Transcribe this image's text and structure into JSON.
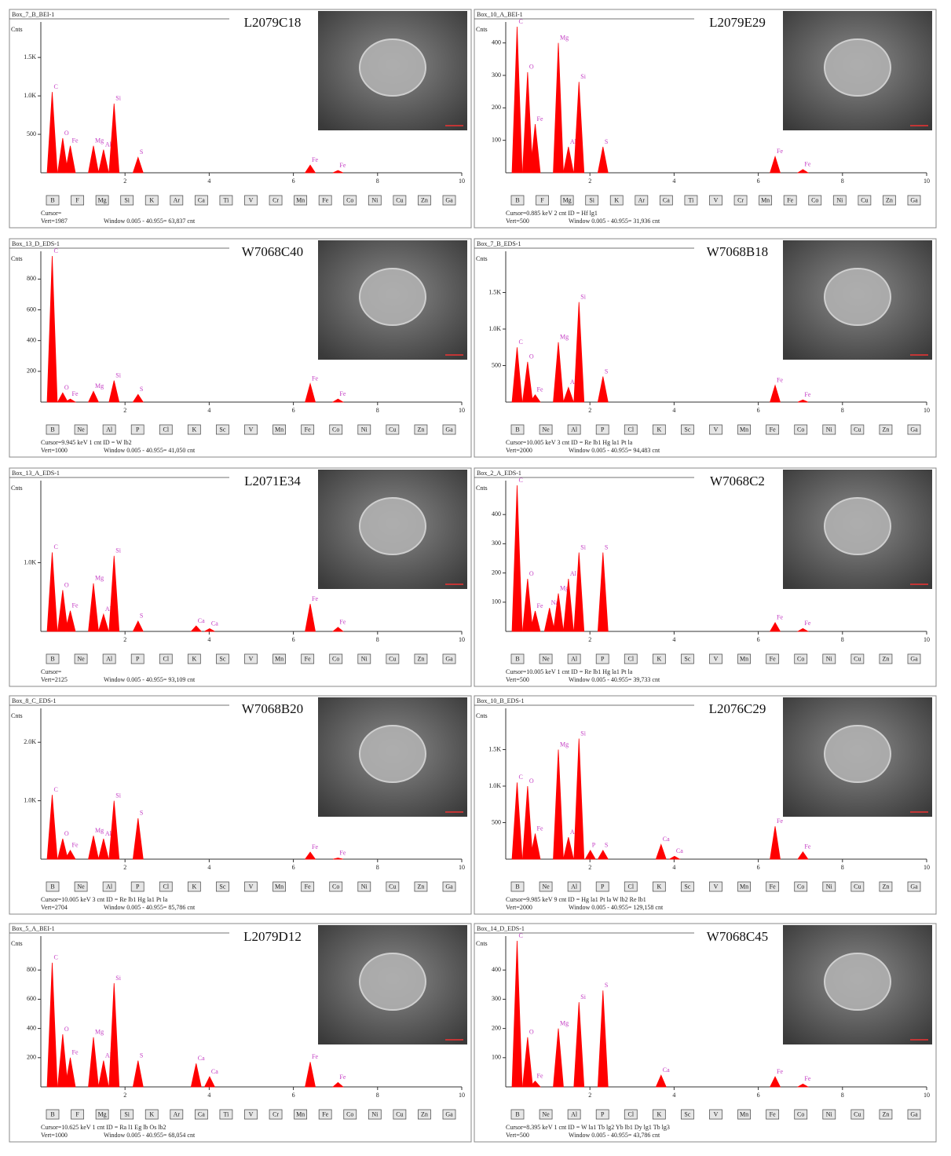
{
  "chart_data": [
    {
      "type": "spectrum",
      "header": "Box_7_B_BEI-1",
      "title": "L2079C18",
      "y_label": "Cnts",
      "color": "#ff0000",
      "xlim": [
        0,
        10
      ],
      "xticks": [
        2,
        4,
        6,
        8,
        10
      ],
      "ylim": [
        0,
        1900
      ],
      "yticks": [
        500,
        {
          "value": 1000,
          "label": "1.0K"
        },
        {
          "value": 1500,
          "label": "1.5K"
        }
      ],
      "x": [
        0.27,
        0.52,
        0.7,
        1.25,
        1.49,
        1.74,
        2.31,
        6.4,
        7.06
      ],
      "values": [
        1050,
        450,
        350,
        350,
        300,
        900,
        200,
        100,
        30
      ],
      "peak_labels": [
        "C",
        "O",
        "Fe",
        "Mg",
        "Al",
        "Si",
        "S",
        "Fe",
        "Fe"
      ],
      "buttons": [
        "B",
        "F",
        "Mg",
        "Si",
        "K",
        "Ar",
        "Ca",
        "Ti",
        "V",
        "Cr",
        "Mn",
        "Fe",
        "Co",
        "Ni",
        "Cu",
        "Zn",
        "Ga"
      ],
      "footer": [
        "Cursor=",
        "Vert=1987",
        "Window 0.005 - 40.955= 63,837 cnt"
      ]
    },
    {
      "type": "spectrum",
      "header": "Box_10_A_BEI-1",
      "title": "L2079E29",
      "y_label": "Cnts",
      "color": "#ff0000",
      "xlim": [
        0,
        10
      ],
      "xticks": [
        2,
        4,
        6,
        8,
        10
      ],
      "ylim": [
        0,
        450
      ],
      "yticks": [
        100,
        200,
        300,
        400
      ],
      "x": [
        0.27,
        0.52,
        0.7,
        1.25,
        1.49,
        1.74,
        2.31,
        6.4,
        7.06
      ],
      "values": [
        450,
        310,
        150,
        400,
        80,
        280,
        80,
        50,
        10
      ],
      "peak_labels": [
        "C",
        "O",
        "Fe",
        "Mg",
        "Al",
        "Si",
        "S",
        "Fe",
        "Fe"
      ],
      "buttons": [
        "B",
        "F",
        "Mg",
        "Si",
        "K",
        "Ar",
        "Ca",
        "Ti",
        "V",
        "Cr",
        "Mn",
        "Fe",
        "Co",
        "Ni",
        "Cu",
        "Zn",
        "Ga"
      ],
      "footer": [
        "Cursor=0.885 keV   2 cnt   ID = Hf lg1",
        "Vert=500",
        "Window 0.005 - 40.955= 31,936 cnt"
      ]
    },
    {
      "type": "spectrum",
      "header": "Box_13_D_EDS-1",
      "title": "W7068C40",
      "y_label": "Cnts",
      "color": "#ff0000",
      "xlim": [
        0,
        10
      ],
      "xticks": [
        2,
        4,
        6,
        8,
        10
      ],
      "ylim": [
        0,
        950
      ],
      "yticks": [
        200,
        400,
        600,
        800
      ],
      "x": [
        0.27,
        0.52,
        0.7,
        1.25,
        1.74,
        2.31,
        6.4,
        7.06
      ],
      "values": [
        950,
        60,
        20,
        70,
        140,
        50,
        120,
        20
      ],
      "peak_labels": [
        "C",
        "O",
        "Fe",
        "Mg",
        "Si",
        "S",
        "Fe",
        "Fe"
      ],
      "buttons": [
        "B",
        "Ne",
        "Al",
        "P",
        "Cl",
        "K",
        "Sc",
        "V",
        "Mn",
        "Fe",
        "Co",
        "Ni",
        "Cu",
        "Zn",
        "Ga"
      ],
      "footer": [
        "Cursor=9.945 keV   1 cnt   ID = W lb2",
        "Vert=1000",
        "Window 0.005 - 40.955= 41,050 cnt"
      ]
    },
    {
      "type": "spectrum",
      "header": "Box_7_B_EDS-1",
      "title": "W7068B18",
      "y_label": "Cnts",
      "color": "#ff0000",
      "xlim": [
        0,
        10
      ],
      "xticks": [
        2,
        4,
        6,
        8,
        10
      ],
      "ylim": [
        0,
        2000
      ],
      "yticks": [
        500,
        {
          "value": 1000,
          "label": "1.0K"
        },
        {
          "value": 1500,
          "label": "1.5K"
        }
      ],
      "x": [
        0.27,
        0.52,
        0.7,
        1.25,
        1.49,
        1.74,
        2.31,
        6.4,
        7.06
      ],
      "values": [
        750,
        550,
        100,
        820,
        200,
        1370,
        350,
        230,
        30
      ],
      "peak_labels": [
        "C",
        "O",
        "Fe",
        "Mg",
        "Al",
        "Si",
        "S",
        "Fe",
        "Fe"
      ],
      "buttons": [
        "B",
        "Ne",
        "Al",
        "P",
        "Cl",
        "K",
        "Sc",
        "V",
        "Mn",
        "Fe",
        "Co",
        "Ni",
        "Cu",
        "Zn",
        "Ga"
      ],
      "footer": [
        "Cursor=10.005 keV   3 cnt   ID = Re lb1 Hg la1 Pt la",
        "Vert=2000",
        "Window 0.005 - 40.955= 94,483 cnt"
      ]
    },
    {
      "type": "spectrum",
      "header": "Box_13_A_EDS-1",
      "title": "L2071E34",
      "y_label": "Cnts",
      "color": "#ff0000",
      "xlim": [
        0,
        10
      ],
      "xticks": [
        2,
        4,
        6,
        8,
        10
      ],
      "ylim": [
        0,
        2125
      ],
      "yticks": [
        {
          "value": 1000,
          "label": "1.0K"
        }
      ],
      "x": [
        0.27,
        0.52,
        0.7,
        1.25,
        1.49,
        1.74,
        2.31,
        3.69,
        4.01,
        6.4,
        7.06
      ],
      "values": [
        1150,
        600,
        300,
        700,
        250,
        1100,
        150,
        80,
        40,
        400,
        60
      ],
      "peak_labels": [
        "C",
        "O",
        "Fe",
        "Mg",
        "Al",
        "Si",
        "S",
        "Ca",
        "Ca",
        "Fe",
        "Fe"
      ],
      "buttons": [
        "B",
        "Ne",
        "Al",
        "P",
        "Cl",
        "K",
        "Sc",
        "V",
        "Mn",
        "Fe",
        "Co",
        "Ni",
        "Cu",
        "Zn",
        "Ga"
      ],
      "footer": [
        "Cursor=",
        "Vert=2125",
        "Window 0.005 - 40.955= 93,109 cnt"
      ]
    },
    {
      "type": "spectrum",
      "header": "Box_2_A_EDS-1",
      "title": "W7068C2",
      "y_label": "Cnts",
      "color": "#ff0000",
      "xlim": [
        0,
        10
      ],
      "xticks": [
        2,
        4,
        6,
        8,
        10
      ],
      "ylim": [
        0,
        500
      ],
      "yticks": [
        100,
        200,
        300,
        400
      ],
      "x": [
        0.27,
        0.52,
        0.7,
        1.04,
        1.25,
        1.49,
        1.74,
        2.31,
        6.4,
        7.06
      ],
      "values": [
        500,
        180,
        70,
        80,
        130,
        180,
        270,
        270,
        30,
        10
      ],
      "peak_labels": [
        "C",
        "O",
        "Fe",
        "Na",
        "Mg",
        "Al",
        "Si",
        "S",
        "Fe",
        "Fe"
      ],
      "buttons": [
        "B",
        "Ne",
        "Al",
        "P",
        "Cl",
        "K",
        "Sc",
        "V",
        "Mn",
        "Fe",
        "Co",
        "Ni",
        "Cu",
        "Zn",
        "Ga"
      ],
      "footer": [
        "Cursor=10.005 keV   1 cnt   ID = Re lb1 Hg la1 Pt la",
        "Vert=500",
        "Window 0.005 - 40.955= 39,733 cnt"
      ]
    },
    {
      "type": "spectrum",
      "header": "Box_8_C_EDS-1",
      "title": "W7068B20",
      "y_label": "Cnts",
      "color": "#ff0000",
      "xlim": [
        0,
        10
      ],
      "xticks": [
        2,
        4,
        6,
        8,
        10
      ],
      "ylim": [
        0,
        2500
      ],
      "yticks": [
        {
          "value": 1000,
          "label": "1.0K"
        },
        {
          "value": 2000,
          "label": "2.0K"
        }
      ],
      "x": [
        0.27,
        0.52,
        0.7,
        1.25,
        1.49,
        1.74,
        2.31,
        6.4,
        7.06
      ],
      "values": [
        1100,
        350,
        150,
        400,
        350,
        1000,
        700,
        120,
        20
      ],
      "peak_labels": [
        "C",
        "O",
        "Fe",
        "Mg",
        "Al",
        "Si",
        "S",
        "Fe",
        "Fe"
      ],
      "buttons": [
        "B",
        "Ne",
        "Al",
        "P",
        "Cl",
        "K",
        "Sc",
        "V",
        "Mn",
        "Fe",
        "Co",
        "Ni",
        "Cu",
        "Zn",
        "Ga"
      ],
      "footer": [
        "Cursor=10.005 keV   3 cnt   ID = Re lb1 Hg la1 Pt la",
        "Vert=2704",
        "Window 0.005 - 40.955= 85,786 cnt"
      ]
    },
    {
      "type": "spectrum",
      "header": "Box_10_B_EDS-1",
      "title": "L2076C29",
      "y_label": "Cnts",
      "color": "#ff0000",
      "xlim": [
        0,
        10
      ],
      "xticks": [
        2,
        4,
        6,
        8,
        10
      ],
      "ylim": [
        0,
        2000
      ],
      "yticks": [
        500,
        {
          "value": 1000,
          "label": "1.0K"
        },
        {
          "value": 1500,
          "label": "1.5K"
        }
      ],
      "x": [
        0.27,
        0.52,
        0.7,
        1.25,
        1.49,
        1.74,
        2.01,
        2.31,
        3.69,
        4.01,
        6.4,
        7.06
      ],
      "values": [
        1050,
        1000,
        350,
        1500,
        300,
        1650,
        120,
        120,
        200,
        40,
        450,
        100
      ],
      "peak_labels": [
        "C",
        "O",
        "Fe",
        "Mg",
        "Al",
        "Si",
        "P",
        "S",
        "Ca",
        "Ca",
        "Fe",
        "Fe"
      ],
      "buttons": [
        "B",
        "Ne",
        "Al",
        "P",
        "Cl",
        "K",
        "Sc",
        "V",
        "Mn",
        "Fe",
        "Co",
        "Ni",
        "Cu",
        "Zn",
        "Ga"
      ],
      "footer": [
        "Cursor=9.985 keV   9 cnt   ID = Hg la1 Pt la  W lb2 Re lb1",
        "Vert=2000",
        "Window 0.005 - 40.955= 129,158 cnt"
      ]
    },
    {
      "type": "spectrum",
      "header": "Box_5_A_BEI-1",
      "title": "L2079D12",
      "y_label": "Cnts",
      "color": "#ff0000",
      "xlim": [
        0,
        10
      ],
      "xticks": [
        2,
        4,
        6,
        8,
        10
      ],
      "ylim": [
        0,
        1000
      ],
      "yticks": [
        200,
        400,
        600,
        800
      ],
      "x": [
        0.27,
        0.52,
        0.7,
        1.25,
        1.49,
        1.74,
        2.31,
        3.69,
        4.01,
        6.4,
        7.06
      ],
      "values": [
        850,
        360,
        200,
        340,
        180,
        710,
        180,
        160,
        70,
        170,
        30
      ],
      "peak_labels": [
        "C",
        "O",
        "Fe",
        "Mg",
        "Al",
        "Si",
        "S",
        "Ca",
        "Ca",
        "Fe",
        "Fe"
      ],
      "buttons": [
        "B",
        "F",
        "Mg",
        "Si",
        "K",
        "Ar",
        "Ca",
        "Ti",
        "V",
        "Cr",
        "Mn",
        "Fe",
        "Co",
        "Ni",
        "Cu",
        "Zn",
        "Ga"
      ],
      "footer": [
        "Cursor=10.625 keV   1 cnt   ID = Ra l1 Eg lb  Os lb2",
        "Vert=1000",
        "Window 0.005 - 40.955= 68,054 cnt"
      ]
    },
    {
      "type": "spectrum",
      "header": "Box_14_D_EDS-1",
      "title": "W7068C45",
      "y_label": "Cnts",
      "color": "#ff0000",
      "xlim": [
        0,
        10
      ],
      "xticks": [
        2,
        4,
        6,
        8,
        10
      ],
      "ylim": [
        0,
        500
      ],
      "yticks": [
        100,
        200,
        300,
        400
      ],
      "x": [
        0.27,
        0.52,
        0.7,
        1.25,
        1.74,
        2.31,
        3.69,
        6.4,
        7.06
      ],
      "values": [
        500,
        170,
        20,
        200,
        290,
        330,
        40,
        35,
        10
      ],
      "peak_labels": [
        "C",
        "O",
        "Fe",
        "Mg",
        "Si",
        "S",
        "Ca",
        "Fe",
        "Fe"
      ],
      "buttons": [
        "B",
        "Ne",
        "Al",
        "P",
        "Cl",
        "K",
        "Sc",
        "V",
        "Mn",
        "Fe",
        "Co",
        "Ni",
        "Cu",
        "Zn",
        "Ga"
      ],
      "footer": [
        "Cursor=8.395 keV   1 cnt   ID = W la1 Tb lg2 Yb lb1 Dy lg1 Tb lg3",
        "Vert=500",
        "Window 0.005 - 40.955= 43,786 cnt"
      ]
    }
  ]
}
